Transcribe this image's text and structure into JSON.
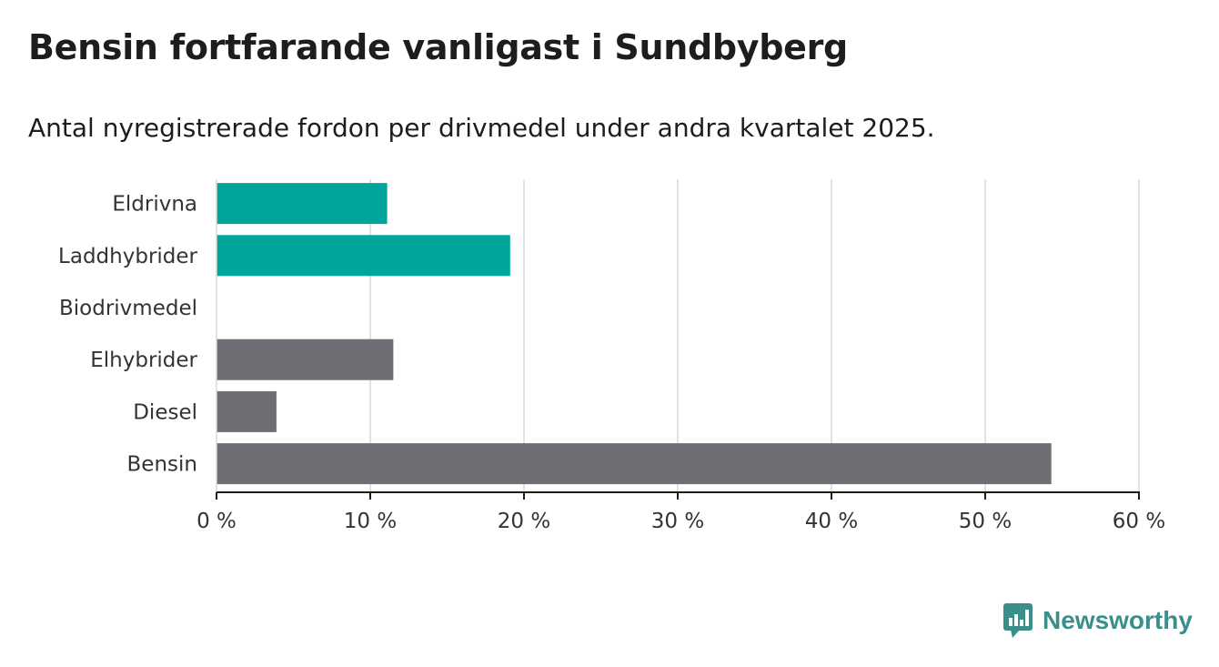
{
  "title": "Bensin fortfarande vanligast i Sundbyberg",
  "subtitle": "Antal nyregistrerade fordon per drivmedel under andra kvartalet 2025.",
  "brand": {
    "name": "Newsworthy",
    "icon": "newsworthy-logo-icon",
    "color": "#3b8f8b"
  },
  "chart_data": {
    "type": "bar",
    "orientation": "horizontal",
    "categories": [
      "Eldrivna",
      "Laddhybrider",
      "Biodrivmedel",
      "Elhybrider",
      "Diesel",
      "Bensin"
    ],
    "values": [
      11.1,
      19.1,
      0,
      11.5,
      3.9,
      54.3
    ],
    "bar_colors": [
      "#00a69c",
      "#00a69c",
      "#6f6e74",
      "#6f6e74",
      "#6f6e74",
      "#6f6e74"
    ],
    "xlim": [
      0,
      60
    ],
    "x_ticks": [
      0,
      10,
      20,
      30,
      40,
      50,
      60
    ],
    "x_tick_labels": [
      "0 %",
      "10 %",
      "20 %",
      "30 %",
      "40 %",
      "50 %",
      "60 %"
    ],
    "grid": true
  }
}
